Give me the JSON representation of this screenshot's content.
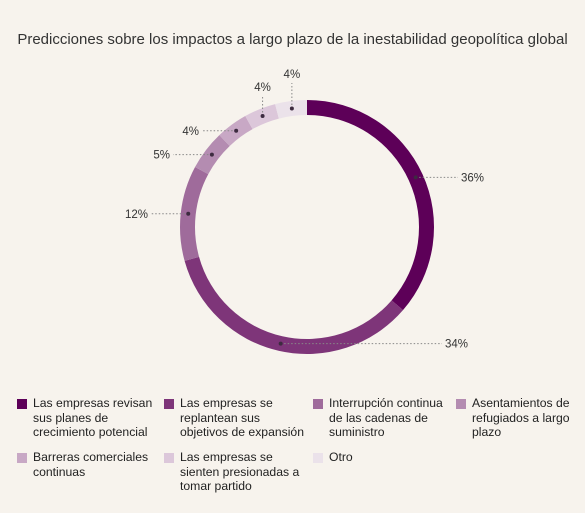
{
  "chart_data": {
    "type": "pie",
    "title": "Predicciones sobre los impactos a largo plazo de la inestabilidad geopolítica global",
    "slices": [
      {
        "label": "Las empresas revisan sus planes de crecimiento potencial",
        "value": 36,
        "value_label": "36%",
        "color": "#5d0058"
      },
      {
        "label": "Las empresas se replantean sus objetivos de expansión",
        "value": 34,
        "value_label": "34%",
        "color": "#7e3579"
      },
      {
        "label": "Interrupción continua de las cadenas de suministro",
        "value": 12,
        "value_label": "12%",
        "color": "#9f6b9b"
      },
      {
        "label": "Asentamientos de refugiados a largo plazo",
        "value": 5,
        "value_label": "5%",
        "color": "#b48cb1"
      },
      {
        "label": "Barreras comerciales continuas",
        "value": 4,
        "value_label": "4%",
        "color": "#c8a8c5"
      },
      {
        "label": "Las empresas se sienten presionadas a tomar partido",
        "value": 4,
        "value_label": "4%",
        "color": "#dcc7da"
      },
      {
        "label": "Otro",
        "value": 4,
        "value_label": "4%",
        "color": "#ebe2ea"
      }
    ],
    "legend_position": "bottom"
  }
}
